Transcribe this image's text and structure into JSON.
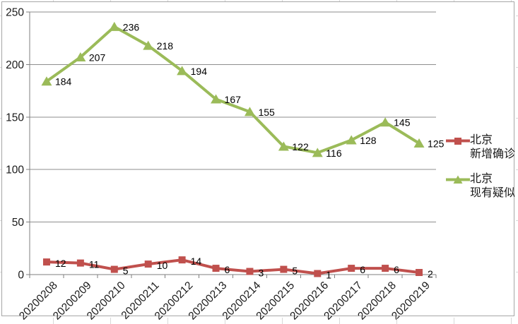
{
  "chart_data": {
    "type": "line",
    "title": "",
    "categories": [
      "20200208",
      "20200209",
      "20200210",
      "20200211",
      "20200212",
      "20200213",
      "20200214",
      "20200215",
      "20200216",
      "20200217",
      "20200218",
      "20200219"
    ],
    "series": [
      {
        "name": "北京\n新增确诊",
        "marker": "square",
        "color": "#C0504D",
        "values": [
          12,
          11,
          5,
          10,
          14,
          6,
          3,
          5,
          1,
          6,
          6,
          2
        ]
      },
      {
        "name": "北京\n现有疑似",
        "marker": "triangle",
        "color": "#9BBB59",
        "values": [
          184,
          207,
          236,
          218,
          194,
          167,
          155,
          122,
          116,
          128,
          145,
          125
        ]
      }
    ],
    "xlabel": "",
    "ylabel": "",
    "ylim": [
      0,
      250
    ],
    "yticks": [
      0,
      50,
      100,
      150,
      200,
      250
    ],
    "grid": "horizontal",
    "legend_position": "right",
    "data_labels": true,
    "x_tick_rotation": -45,
    "colors": {
      "grid": "#8E8E8E",
      "axis": "#7F7F7F",
      "tick_label": "#1A1A1A",
      "data_label": "#000000",
      "frame_border": "#A6A6A6",
      "sheet_gridline": "#D8D8D8",
      "plot_background": "#FFFFFF"
    }
  }
}
